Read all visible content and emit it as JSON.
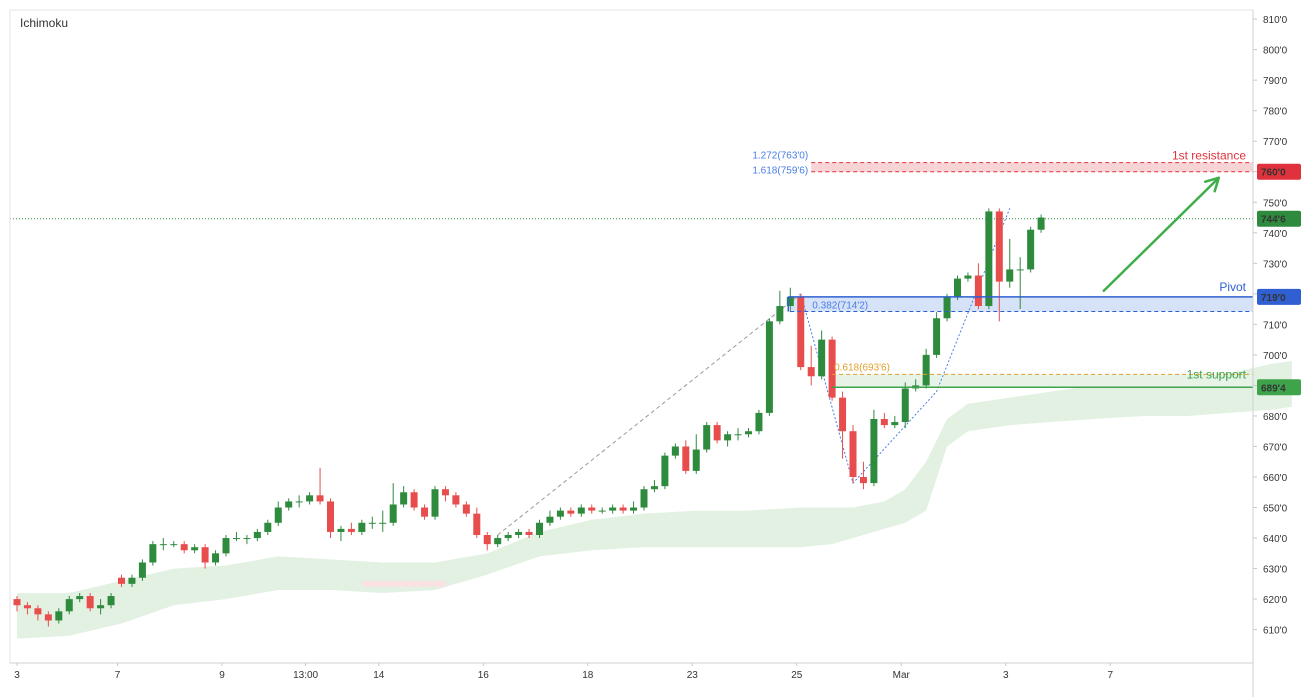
{
  "chart_data": {
    "type": "candlestick",
    "indicator_label": "Ichimoku",
    "colors": {
      "up": "#2e8b3e",
      "down": "#e84d4d",
      "resistance": "#e0323c",
      "pivot": "#2f5fd0",
      "support": "#3ea34a",
      "fib": "#4a7de8",
      "fib_support": "#e0a030",
      "cloud_green": "#e3f1e3",
      "cloud_red": "#fbe2e2",
      "arrow": "#3fae4a",
      "last_price": "#2e8b3e"
    },
    "y_axis": {
      "min": 603,
      "max": 812,
      "ticks": [
        "810'0",
        "800'0",
        "790'0",
        "780'0",
        "770'0",
        "760'0",
        "750'0",
        "740'0",
        "730'0",
        "720'0",
        "710'0",
        "700'0",
        "690'0",
        "680'0",
        "670'0",
        "660'0",
        "650'0",
        "640'0",
        "630'0",
        "620'0",
        "610'0"
      ]
    },
    "x_axis": {
      "labels": [
        {
          "i": 0,
          "text": "3"
        },
        {
          "i": 10,
          "text": "7"
        },
        {
          "i": 20,
          "text": "9"
        },
        {
          "i": 28,
          "text": "13:00"
        },
        {
          "i": 35,
          "text": "14"
        },
        {
          "i": 45,
          "text": "16"
        },
        {
          "i": 55,
          "text": "18"
        },
        {
          "i": 65,
          "text": "23"
        },
        {
          "i": 75,
          "text": "25"
        },
        {
          "i": 85,
          "text": "Mar"
        },
        {
          "i": 95,
          "text": "3"
        },
        {
          "i": 105,
          "text": "7"
        }
      ]
    },
    "candles": [
      [
        620,
        618,
        621,
        616
      ],
      [
        618,
        617,
        619,
        615
      ],
      [
        617,
        615,
        618,
        613
      ],
      [
        615,
        613,
        616,
        611
      ],
      [
        613,
        616,
        617,
        612
      ],
      [
        616,
        620,
        621,
        615
      ],
      [
        620,
        621,
        622,
        619
      ],
      [
        621,
        617,
        622,
        616
      ],
      [
        617,
        618,
        620,
        615
      ],
      [
        618,
        621,
        622,
        617
      ],
      [
        627,
        625,
        628,
        624
      ],
      [
        625,
        627,
        628,
        624
      ],
      [
        627,
        632,
        633,
        626
      ],
      [
        632,
        638,
        639,
        631
      ],
      [
        638,
        638,
        640,
        636
      ],
      [
        638,
        638,
        639,
        637
      ],
      [
        638,
        636,
        639,
        635
      ],
      [
        636,
        637,
        638,
        635
      ],
      [
        637,
        632,
        638,
        630
      ],
      [
        632,
        635,
        636,
        631
      ],
      [
        635,
        640,
        641,
        634
      ],
      [
        640,
        640,
        642,
        639
      ],
      [
        640,
        640,
        641,
        638
      ],
      [
        640,
        642,
        643,
        639
      ],
      [
        642,
        645,
        646,
        641
      ],
      [
        645,
        650,
        652,
        644
      ],
      [
        650,
        652,
        653,
        649
      ],
      [
        652,
        652,
        654,
        650
      ],
      [
        652,
        654,
        655,
        651
      ],
      [
        654,
        652,
        663,
        651
      ],
      [
        652,
        642,
        653,
        640
      ],
      [
        642,
        643,
        644,
        639
      ],
      [
        643,
        642,
        645,
        641
      ],
      [
        642,
        645,
        646,
        641
      ],
      [
        645,
        645,
        647,
        643
      ],
      [
        645,
        645,
        649,
        642
      ],
      [
        645,
        651,
        658,
        644
      ],
      [
        651,
        655,
        657,
        650
      ],
      [
        655,
        650,
        656,
        649
      ],
      [
        650,
        647,
        651,
        646
      ],
      [
        647,
        656,
        657,
        646
      ],
      [
        656,
        654,
        657,
        652
      ],
      [
        654,
        651,
        655,
        650
      ],
      [
        651,
        648,
        652,
        647
      ],
      [
        648,
        641,
        650,
        640
      ],
      [
        641,
        638,
        642,
        636
      ],
      [
        638,
        640,
        641,
        637
      ],
      [
        640,
        641,
        642,
        639
      ],
      [
        641,
        642,
        643,
        640
      ],
      [
        642,
        641,
        643,
        640
      ],
      [
        641,
        645,
        646,
        640
      ],
      [
        645,
        647,
        649,
        644
      ],
      [
        647,
        649,
        650,
        646
      ],
      [
        649,
        648,
        650,
        647
      ],
      [
        648,
        650,
        651,
        647
      ],
      [
        650,
        649,
        651,
        648
      ],
      [
        649,
        649,
        650,
        648
      ],
      [
        649,
        650,
        651,
        648
      ],
      [
        650,
        649,
        651,
        648
      ],
      [
        649,
        650,
        652,
        648
      ],
      [
        650,
        656,
        657,
        649
      ],
      [
        656,
        657,
        659,
        655
      ],
      [
        657,
        667,
        668,
        656
      ],
      [
        667,
        670,
        671,
        666
      ],
      [
        670,
        662,
        672,
        661
      ],
      [
        662,
        669,
        674,
        661
      ],
      [
        669,
        677,
        678,
        668
      ],
      [
        677,
        672,
        678,
        671
      ],
      [
        672,
        674,
        675,
        670
      ],
      [
        674,
        674,
        676,
        672
      ],
      [
        674,
        675,
        676,
        673
      ],
      [
        675,
        681,
        682,
        674
      ],
      [
        681,
        711,
        712,
        680
      ],
      [
        711,
        716,
        721,
        710
      ],
      [
        716,
        719,
        722,
        714
      ],
      [
        719,
        696,
        720,
        695
      ],
      [
        696,
        693,
        703,
        690
      ],
      [
        693,
        705,
        708,
        692
      ],
      [
        705,
        686,
        706,
        685
      ],
      [
        686,
        675,
        688,
        666
      ],
      [
        675,
        660,
        677,
        658
      ],
      [
        660,
        658,
        665,
        656
      ],
      [
        658,
        679,
        682,
        657
      ],
      [
        679,
        677,
        681,
        676
      ],
      [
        677,
        678,
        680,
        676
      ],
      [
        678,
        689,
        691,
        676
      ],
      [
        689,
        690,
        692,
        688
      ],
      [
        690,
        700,
        702,
        689
      ],
      [
        700,
        712,
        714,
        699
      ],
      [
        712,
        719,
        720,
        711
      ],
      [
        719,
        725,
        726,
        718
      ],
      [
        725,
        726,
        727,
        724
      ],
      [
        726,
        716,
        730,
        715
      ],
      [
        716,
        747,
        748,
        715
      ],
      [
        747,
        724,
        748,
        711
      ],
      [
        724,
        728,
        738,
        722
      ],
      [
        728,
        728,
        732,
        715
      ],
      [
        728,
        741,
        742,
        727
      ],
      [
        741,
        745,
        746,
        740
      ]
    ],
    "cloud_top": [
      [
        0,
        622
      ],
      [
        5,
        622
      ],
      [
        10,
        626
      ],
      [
        15,
        630
      ],
      [
        20,
        631
      ],
      [
        25,
        634
      ],
      [
        30,
        633
      ],
      [
        35,
        632
      ],
      [
        40,
        632
      ],
      [
        45,
        635
      ],
      [
        50,
        642
      ],
      [
        55,
        646
      ],
      [
        60,
        648
      ],
      [
        65,
        649
      ],
      [
        70,
        649
      ],
      [
        75,
        650
      ],
      [
        78,
        650
      ],
      [
        80,
        650
      ],
      [
        83,
        652
      ],
      [
        85,
        656
      ],
      [
        87,
        665
      ],
      [
        89,
        679
      ],
      [
        91,
        684
      ],
      [
        95,
        686
      ],
      [
        99,
        688
      ],
      [
        103,
        690
      ],
      [
        108,
        691
      ],
      [
        112,
        692
      ],
      [
        116,
        694
      ],
      [
        120,
        697
      ],
      [
        122,
        698
      ]
    ],
    "cloud_bottom": [
      [
        0,
        607
      ],
      [
        5,
        608
      ],
      [
        10,
        612
      ],
      [
        15,
        618
      ],
      [
        20,
        620
      ],
      [
        25,
        623
      ],
      [
        30,
        623
      ],
      [
        35,
        622
      ],
      [
        40,
        623
      ],
      [
        45,
        628
      ],
      [
        50,
        634
      ],
      [
        55,
        636
      ],
      [
        60,
        637
      ],
      [
        65,
        637
      ],
      [
        70,
        637
      ],
      [
        75,
        637
      ],
      [
        78,
        638
      ],
      [
        80,
        640
      ],
      [
        83,
        643
      ],
      [
        85,
        645
      ],
      [
        87,
        649
      ],
      [
        89,
        670
      ],
      [
        91,
        675
      ],
      [
        95,
        677
      ],
      [
        99,
        678
      ],
      [
        103,
        679
      ],
      [
        108,
        680
      ],
      [
        112,
        680
      ],
      [
        116,
        681
      ],
      [
        120,
        682
      ],
      [
        122,
        683
      ]
    ],
    "cloud_red_segment": {
      "from": 33,
      "to": 41,
      "top": 626,
      "bottom": 624
    },
    "resistance": {
      "label": "1st resistance",
      "value": 760.0,
      "tag": "760'0",
      "zone_top": 763.0,
      "from_i": 76
    },
    "fib_resistance": [
      "1.272(763'0)",
      "1.618(759'6)"
    ],
    "pivot": {
      "label": "Pivot",
      "value": 719.0,
      "tag": "719'0",
      "zone_bottom": 714.2,
      "from_i": 74
    },
    "pivot_fib": "0.382(714'2)",
    "support": {
      "label": "1st support",
      "value": 689.4,
      "tag": "689'4",
      "fib_line": 693.6,
      "from_i": 78
    },
    "support_fib": "0.618(693'6)",
    "last_price": {
      "value": 744.6,
      "tag": "744'6"
    },
    "arrow": {
      "from": [
        104,
        721
      ],
      "to": [
        115,
        758
      ]
    },
    "dashed_swing": {
      "from": [
        46,
        641
      ],
      "to": [
        75,
        720
      ]
    },
    "dotted_swing": [
      [
        75,
        720
      ],
      [
        80,
        658
      ],
      [
        88,
        688
      ],
      [
        95,
        748
      ]
    ]
  }
}
